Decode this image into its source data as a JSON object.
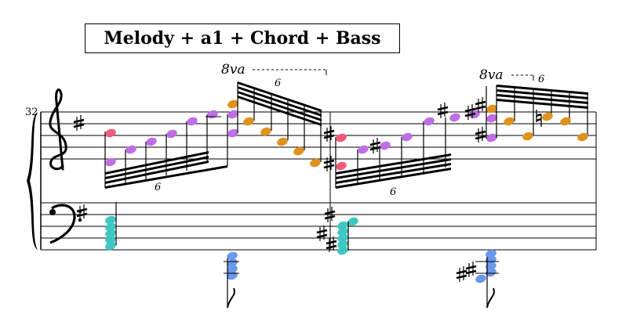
{
  "title": "Melody + a1 + Chord + Bass",
  "measure_number": "32",
  "ottava": [
    "8va",
    "8va"
  ],
  "tuplets": [
    "6",
    "6",
    "6",
    "6"
  ],
  "colors": {
    "melody": "#ef5a7a",
    "a1": "#bf6fe3",
    "chord": "#3fc7c2",
    "bass": "#6a98ea",
    "upper": "#de931f",
    "ink": "#000000"
  },
  "clefs": [
    "treble-clef",
    "bass-clef"
  ],
  "key_signature": "1 sharp"
}
